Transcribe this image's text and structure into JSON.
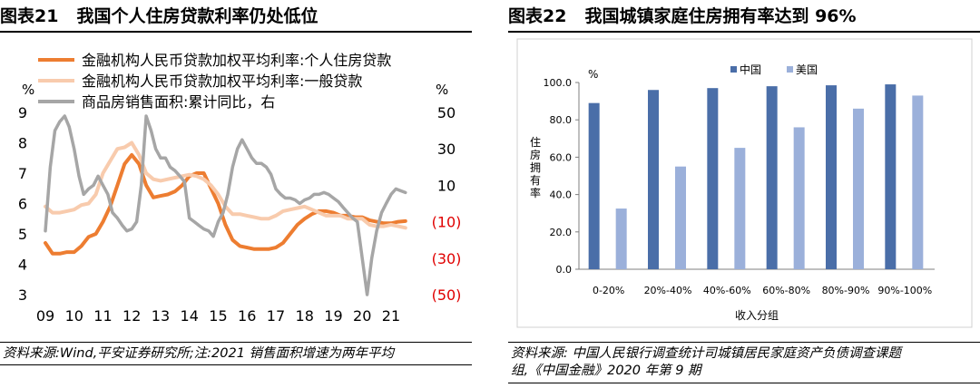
{
  "left": {
    "figure_number": "图表21",
    "figure_title": "我国个人住房贷款利率仍处低位",
    "source": "资料来源:Wind,平安证券研究所;注:2021 销售面积增速为两年平均"
  },
  "right": {
    "figure_number": "图表22",
    "figure_title": "我国城镇家庭住房拥有率达到 96%",
    "source_line1": "资料来源: 中国人民银行调查统计司城镇居民家庭资产负债调查课题",
    "source_line2": "组,《中国金融》2020 年第 9 期"
  },
  "colors": {
    "personal_loan": "#ED7D31",
    "general_loan": "#F8CBAD",
    "sales_area": "#A6A6A6",
    "china": "#4A6EA8",
    "usa": "#9BB0DA",
    "negative_tick": "#E00000"
  },
  "chart_data": [
    {
      "type": "line",
      "title": "我国个人住房贷款利率仍处低位",
      "left_axis_unit": "%",
      "right_axis_unit": "%",
      "left_ylim": [
        3,
        9
      ],
      "right_ylim": [
        -50,
        50
      ],
      "left_ticks": [
        "3",
        "4",
        "5",
        "6",
        "7",
        "8",
        "9"
      ],
      "right_ticks": [
        "(50)",
        "(30)",
        "(10)",
        "10",
        "30",
        "50"
      ],
      "x_ticks": [
        "09",
        "10",
        "11",
        "12",
        "13",
        "14",
        "15",
        "16",
        "17",
        "18",
        "19",
        "20",
        "21"
      ],
      "legend_position": "top",
      "grid": false,
      "series": [
        {
          "name": "金融机构人民币贷款加权平均利率:个人住房贷款",
          "axis": "left",
          "x": [
            2009.0,
            2009.25,
            2009.5,
            2009.75,
            2010.0,
            2010.25,
            2010.5,
            2010.75,
            2011.0,
            2011.25,
            2011.5,
            2011.75,
            2012.0,
            2012.25,
            2012.5,
            2012.75,
            2013.0,
            2013.25,
            2013.5,
            2013.75,
            2014.0,
            2014.25,
            2014.5,
            2014.75,
            2015.0,
            2015.25,
            2015.5,
            2015.75,
            2016.0,
            2016.25,
            2016.5,
            2016.75,
            2017.0,
            2017.25,
            2017.5,
            2017.75,
            2018.0,
            2018.25,
            2018.5,
            2018.75,
            2019.0,
            2019.25,
            2019.5,
            2019.75,
            2020.0,
            2020.25,
            2020.5,
            2020.75,
            2021.0,
            2021.25,
            2021.5
          ],
          "values": [
            4.7,
            4.35,
            4.35,
            4.4,
            4.4,
            4.6,
            4.9,
            5.0,
            5.4,
            5.9,
            6.6,
            7.3,
            7.6,
            7.3,
            6.6,
            6.2,
            6.25,
            6.3,
            6.4,
            6.6,
            6.9,
            7.0,
            7.0,
            6.5,
            6.0,
            5.3,
            4.8,
            4.6,
            4.55,
            4.5,
            4.5,
            4.5,
            4.55,
            4.7,
            5.0,
            5.3,
            5.5,
            5.65,
            5.75,
            5.75,
            5.7,
            5.6,
            5.6,
            5.55,
            5.55,
            5.45,
            5.4,
            5.35,
            5.35,
            5.4,
            5.42
          ]
        },
        {
          "name": "金融机构人民币贷款加权平均利率:一般贷款",
          "axis": "left",
          "x": [
            2009.0,
            2009.25,
            2009.5,
            2009.75,
            2010.0,
            2010.25,
            2010.5,
            2010.75,
            2011.0,
            2011.25,
            2011.5,
            2011.75,
            2012.0,
            2012.25,
            2012.5,
            2012.75,
            2013.0,
            2013.25,
            2013.5,
            2013.75,
            2014.0,
            2014.25,
            2014.5,
            2014.75,
            2015.0,
            2015.25,
            2015.5,
            2015.75,
            2016.0,
            2016.25,
            2016.5,
            2016.75,
            2017.0,
            2017.25,
            2017.5,
            2017.75,
            2018.0,
            2018.25,
            2018.5,
            2018.75,
            2019.0,
            2019.25,
            2019.5,
            2019.75,
            2020.0,
            2020.25,
            2020.5,
            2020.75,
            2021.0,
            2021.25,
            2021.5
          ],
          "values": [
            5.9,
            5.7,
            5.7,
            5.75,
            5.8,
            5.95,
            6.0,
            6.3,
            7.0,
            7.4,
            7.8,
            7.85,
            8.0,
            7.6,
            7.0,
            6.8,
            6.75,
            6.8,
            6.85,
            6.9,
            6.95,
            6.9,
            6.8,
            6.6,
            6.3,
            5.9,
            5.65,
            5.65,
            5.6,
            5.55,
            5.5,
            5.5,
            5.6,
            5.75,
            5.8,
            5.85,
            5.9,
            5.8,
            5.7,
            5.6,
            5.6,
            5.6,
            5.5,
            5.5,
            5.5,
            5.3,
            5.25,
            5.25,
            5.3,
            5.25,
            5.2
          ]
        },
        {
          "name": "商品房销售面积:累计同比，右",
          "axis": "right",
          "x": [
            2009.0,
            2009.17,
            2009.33,
            2009.5,
            2009.67,
            2009.83,
            2010.0,
            2010.17,
            2010.33,
            2010.5,
            2010.67,
            2010.83,
            2011.0,
            2011.17,
            2011.33,
            2011.5,
            2011.67,
            2011.83,
            2012.0,
            2012.17,
            2012.33,
            2012.5,
            2012.67,
            2012.83,
            2013.0,
            2013.17,
            2013.33,
            2013.5,
            2013.67,
            2013.83,
            2014.0,
            2014.17,
            2014.33,
            2014.5,
            2014.67,
            2014.83,
            2015.0,
            2015.17,
            2015.33,
            2015.5,
            2015.67,
            2015.83,
            2016.0,
            2016.17,
            2016.33,
            2016.5,
            2016.67,
            2016.83,
            2017.0,
            2017.17,
            2017.33,
            2017.5,
            2017.67,
            2017.83,
            2018.0,
            2018.17,
            2018.33,
            2018.5,
            2018.67,
            2018.83,
            2019.0,
            2019.17,
            2019.33,
            2019.5,
            2019.67,
            2019.83,
            2020.0,
            2020.17,
            2020.33,
            2020.5,
            2020.67,
            2020.83,
            2021.0,
            2021.17,
            2021.33,
            2021.5
          ],
          "values": [
            -15,
            20,
            40,
            45,
            48,
            42,
            30,
            15,
            5,
            8,
            10,
            15,
            10,
            5,
            -5,
            -8,
            -12,
            -15,
            -14,
            -10,
            10,
            48,
            40,
            30,
            25,
            25,
            20,
            18,
            15,
            12,
            -8,
            -10,
            -12,
            -14,
            -15,
            -18,
            -10,
            -5,
            5,
            20,
            30,
            35,
            30,
            25,
            22,
            22,
            20,
            16,
            8,
            5,
            3,
            3,
            2,
            0,
            2,
            3,
            5,
            5,
            6,
            5,
            3,
            1,
            -2,
            -5,
            -8,
            -10,
            -30,
            -50,
            -30,
            -15,
            -5,
            0,
            5,
            8,
            7,
            6
          ]
        }
      ]
    },
    {
      "type": "bar",
      "title": "我国城镇家庭住房拥有率达到 96%",
      "xlabel": "收入分组",
      "ylabel": "住房拥有率",
      "y_unit": "%",
      "ylim": [
        0,
        100
      ],
      "y_ticks": [
        "0.0",
        "20.0",
        "40.0",
        "60.0",
        "80.0",
        "100.0"
      ],
      "categories": [
        "0-20%",
        "20%-40%",
        "40%-60%",
        "60%-80%",
        "80%-90%",
        "90%-100%"
      ],
      "legend_position": "top-center",
      "grid": false,
      "series": [
        {
          "name": "中国",
          "values": [
            89,
            96,
            97,
            98,
            98.5,
            99
          ]
        },
        {
          "name": "美国",
          "values": [
            32.5,
            55,
            65,
            76,
            86,
            93
          ]
        }
      ]
    }
  ]
}
